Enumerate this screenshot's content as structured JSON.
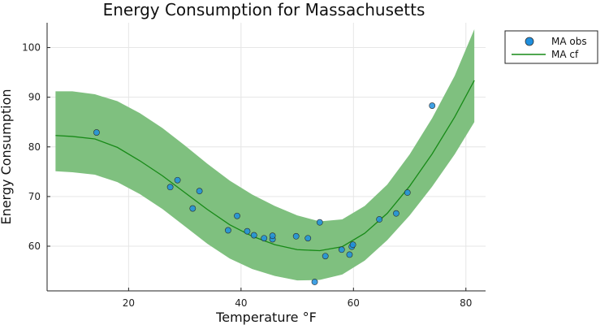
{
  "chart_data": {
    "type": "scatter",
    "title": "Energy Consumption for Massachusetts",
    "xlabel": "Temperature °F",
    "ylabel": "Energy Consumption",
    "xlim": [
      5.5,
      83.5
    ],
    "ylim": [
      51,
      105
    ],
    "xticks": [
      20,
      40,
      60,
      80
    ],
    "yticks": [
      60,
      70,
      80,
      90,
      100
    ],
    "grid": true,
    "legend_position": "top-right outside",
    "colors": {
      "obs": "#1f8fde",
      "cf": "#178a17",
      "band": "#7fc07f"
    },
    "series": [
      {
        "name": "MA obs",
        "kind": "scatter",
        "points": [
          [
            14.3,
            82.9
          ],
          [
            27.4,
            71.9
          ],
          [
            28.7,
            73.3
          ],
          [
            31.4,
            67.6
          ],
          [
            32.6,
            71.1
          ],
          [
            37.7,
            63.2
          ],
          [
            39.3,
            66.1
          ],
          [
            41.1,
            63.0
          ],
          [
            42.3,
            62.2
          ],
          [
            44.1,
            61.6
          ],
          [
            45.6,
            61.4
          ],
          [
            45.6,
            62.1
          ],
          [
            49.8,
            62.0
          ],
          [
            51.9,
            61.6
          ],
          [
            53.1,
            52.8
          ],
          [
            54.0,
            64.8
          ],
          [
            55.0,
            58.0
          ],
          [
            57.9,
            59.3
          ],
          [
            59.3,
            58.3
          ],
          [
            59.7,
            59.9
          ],
          [
            59.9,
            60.3
          ],
          [
            64.6,
            65.4
          ],
          [
            67.6,
            66.6
          ],
          [
            69.6,
            70.8
          ],
          [
            74.0,
            88.3
          ]
        ]
      },
      {
        "name": "MA cf",
        "kind": "line",
        "points": [
          [
            7,
            82.3
          ],
          [
            10,
            82.1
          ],
          [
            14,
            81.6
          ],
          [
            18,
            79.9
          ],
          [
            22,
            77.2
          ],
          [
            26,
            74.2
          ],
          [
            30,
            70.8
          ],
          [
            34,
            67.4
          ],
          [
            38,
            64.3
          ],
          [
            42,
            62.0
          ],
          [
            46,
            60.3
          ],
          [
            50,
            59.3
          ],
          [
            54,
            59.1
          ],
          [
            58,
            59.9
          ],
          [
            62,
            62.6
          ],
          [
            66,
            66.6
          ],
          [
            70,
            72.1
          ],
          [
            74,
            78.6
          ],
          [
            78,
            86.0
          ],
          [
            81.5,
            93.4
          ]
        ]
      },
      {
        "name": "",
        "kind": "band",
        "points": [
          [
            7,
            75.1,
            91.2
          ],
          [
            10,
            74.9,
            91.2
          ],
          [
            14,
            74.4,
            90.6
          ],
          [
            18,
            72.9,
            89.2
          ],
          [
            22,
            70.5,
            86.8
          ],
          [
            26,
            67.5,
            83.8
          ],
          [
            30,
            64.0,
            80.3
          ],
          [
            34,
            60.5,
            76.6
          ],
          [
            38,
            57.5,
            73.2
          ],
          [
            42,
            55.4,
            70.4
          ],
          [
            46,
            54.0,
            68.1
          ],
          [
            50,
            53.1,
            66.2
          ],
          [
            54,
            53.2,
            65.0
          ],
          [
            58,
            54.3,
            65.4
          ],
          [
            62,
            57.1,
            68.1
          ],
          [
            66,
            61.2,
            72.4
          ],
          [
            70,
            66.2,
            78.5
          ],
          [
            74,
            72.0,
            85.8
          ],
          [
            78,
            78.5,
            94.3
          ],
          [
            81.5,
            85.0,
            103.7
          ]
        ]
      }
    ]
  }
}
